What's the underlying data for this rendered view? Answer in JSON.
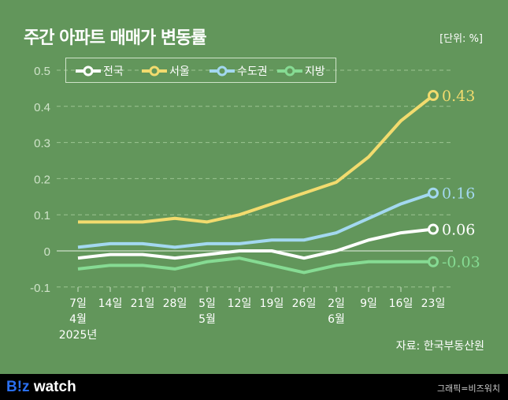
{
  "title": "주간 아파트 매매가 변동률",
  "unit": "[단위: %]",
  "source": "자료: 한국부동산원",
  "footer": {
    "logo_b": "B!z",
    "logo_rest": " watch",
    "credit": "그래픽=비즈워치"
  },
  "chart_data": {
    "type": "line",
    "title": "주간 아파트 매매가 변동률",
    "ylim": [
      -0.1,
      0.5
    ],
    "yticks": [
      "0.5",
      "0.4",
      "0.3",
      "0.2",
      "0.1",
      "0",
      "-0.1"
    ],
    "ytick_values": [
      0.5,
      0.4,
      0.3,
      0.2,
      0.1,
      0,
      -0.1
    ],
    "grid": true,
    "legend": "top-left",
    "categories": [
      [
        "7일",
        "4월",
        "2025년"
      ],
      [
        "14일"
      ],
      [
        "21일"
      ],
      [
        "28일"
      ],
      [
        "5일",
        "5월"
      ],
      [
        "12일"
      ],
      [
        "19일"
      ],
      [
        "26일"
      ],
      [
        "2일",
        "6월"
      ],
      [
        "9일"
      ],
      [
        "16일"
      ],
      [
        "23일"
      ]
    ],
    "series": [
      {
        "name": "전국",
        "color": "#ffffff",
        "values": [
          -0.02,
          -0.01,
          -0.01,
          -0.02,
          -0.01,
          0,
          0,
          -0.02,
          0,
          0.03,
          0.05,
          0.06
        ],
        "end_label": "0.06"
      },
      {
        "name": "서울",
        "color": "#f2db6e",
        "values": [
          0.08,
          0.08,
          0.08,
          0.09,
          0.08,
          0.1,
          0.13,
          0.16,
          0.19,
          0.26,
          0.36,
          0.43
        ],
        "end_label": "0.43"
      },
      {
        "name": "수도권",
        "color": "#a3d8f0",
        "values": [
          0.01,
          0.02,
          0.02,
          0.01,
          0.02,
          0.02,
          0.03,
          0.03,
          0.05,
          0.09,
          0.13,
          0.16
        ],
        "end_label": "0.16"
      },
      {
        "name": "지방",
        "color": "#86db93",
        "values": [
          -0.05,
          -0.04,
          -0.04,
          -0.05,
          -0.03,
          -0.02,
          -0.04,
          -0.06,
          -0.04,
          -0.03,
          -0.03,
          -0.03
        ],
        "end_label": "-0.03"
      }
    ]
  }
}
